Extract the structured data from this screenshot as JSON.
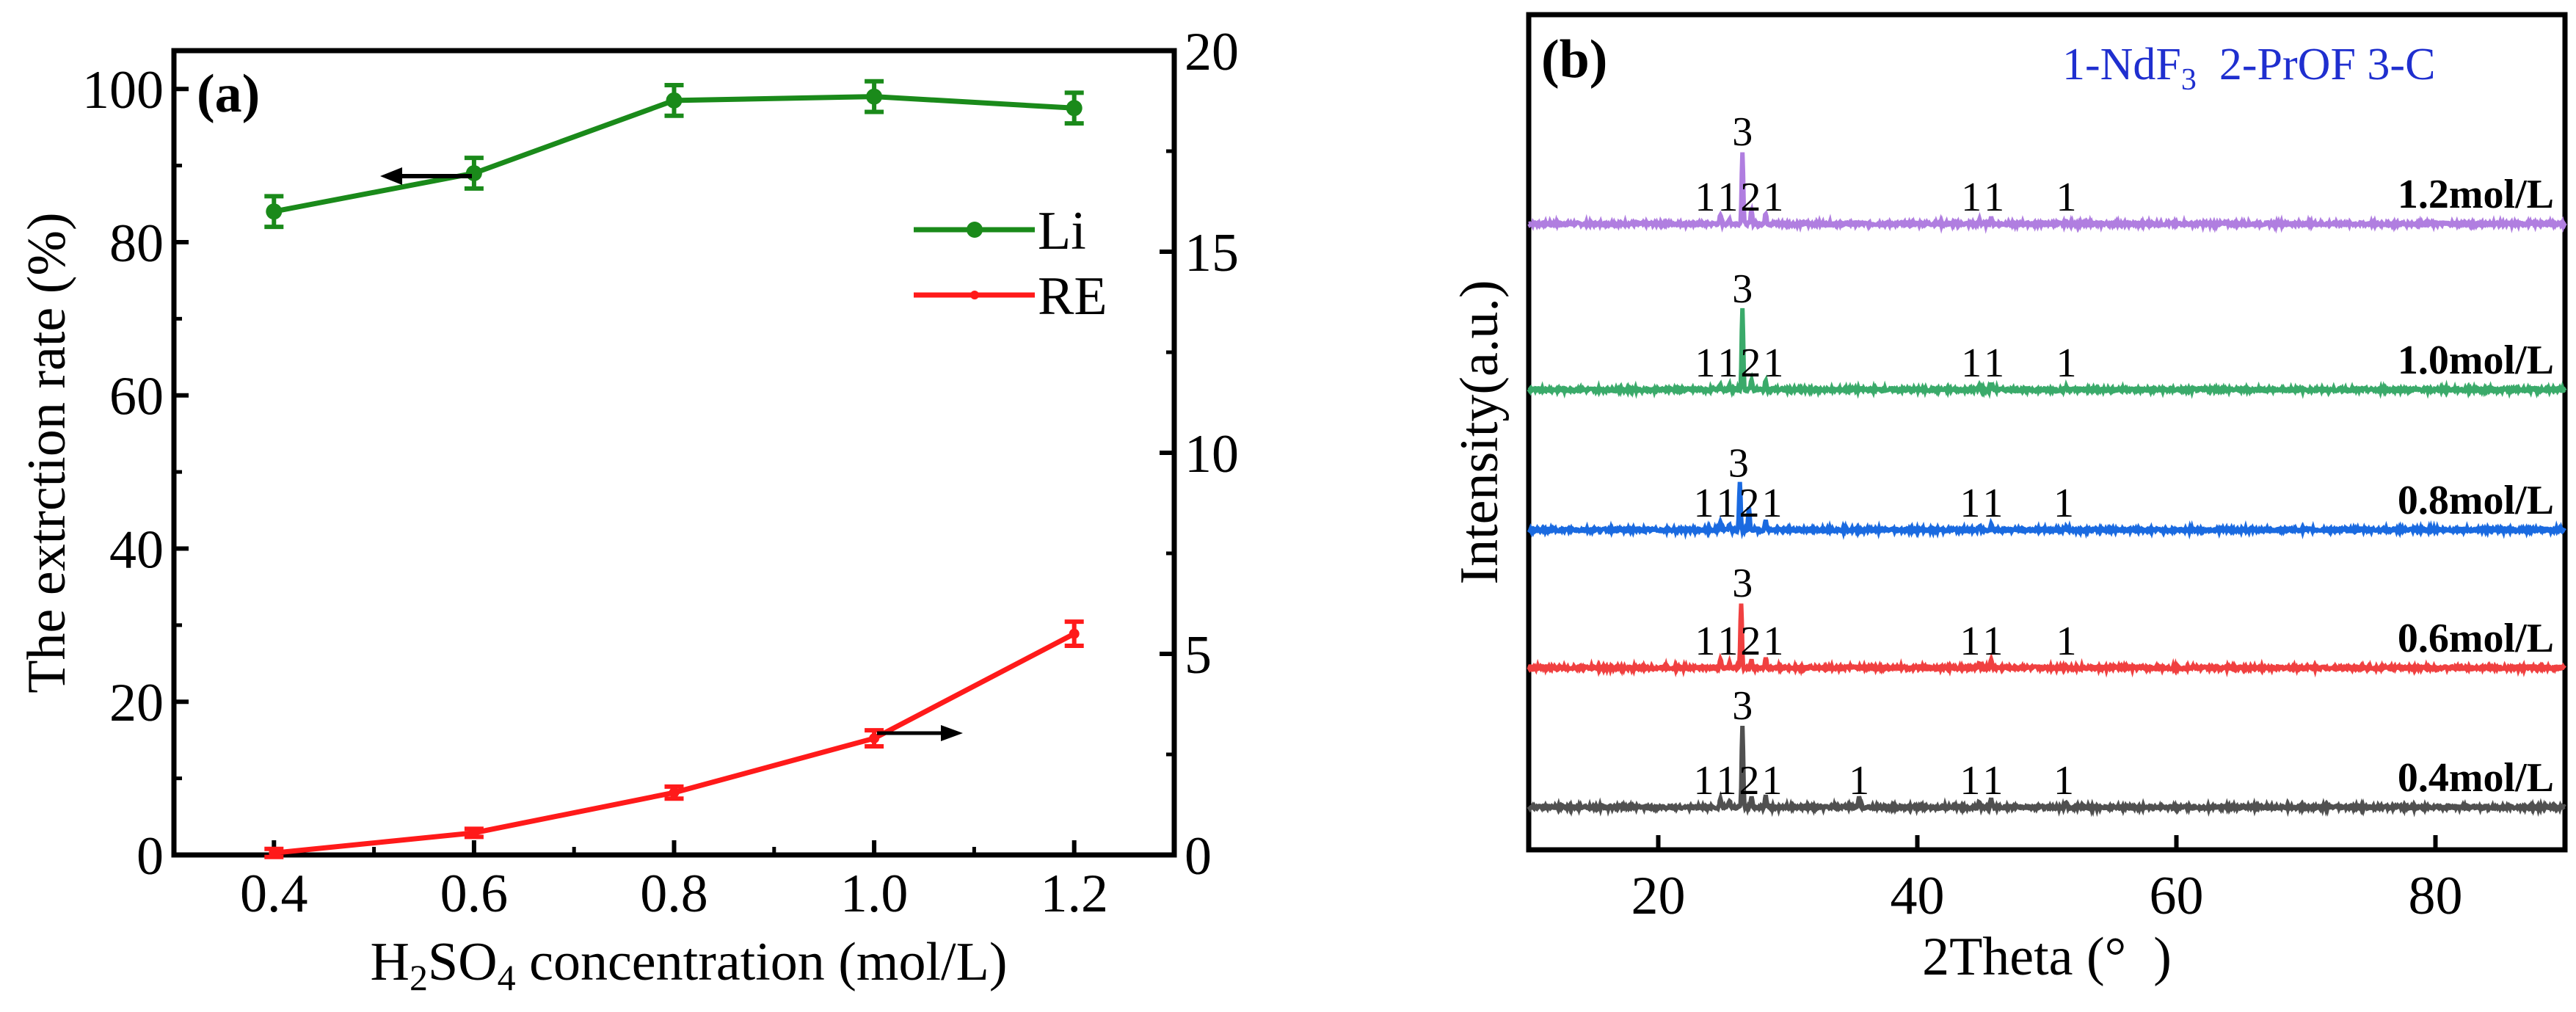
{
  "chart_data": [
    {
      "type": "line",
      "panel_label": "(a)",
      "xlabel_parts": [
        "H",
        "2",
        "SO",
        "4",
        " concentration (mol/L)"
      ],
      "ylabel": "The extrction rate (%)",
      "xlim": [
        0.3,
        1.3
      ],
      "ylim_left": [
        0,
        105
      ],
      "ylim_right": [
        0,
        20
      ],
      "x_ticks": [
        0.4,
        0.6,
        0.8,
        1.0,
        1.2
      ],
      "x_tick_labels": [
        "0.4",
        "0.6",
        "0.8",
        "1.0",
        "1.2"
      ],
      "y_left_ticks": [
        0,
        20,
        40,
        60,
        80,
        100
      ],
      "y_left_tick_labels": [
        "0",
        "20",
        "40",
        "60",
        "80",
        "100"
      ],
      "y_right_ticks": [
        0,
        5,
        10,
        15,
        20
      ],
      "y_right_tick_labels": [
        "0",
        "5",
        "10",
        "15",
        "20"
      ],
      "x": [
        0.4,
        0.6,
        0.8,
        1.0,
        1.2
      ],
      "series": [
        {
          "name": "Li",
          "axis": "left",
          "color": "#1a8a1a",
          "values": [
            84,
            89,
            98.5,
            99,
            97.5
          ],
          "errors": [
            2,
            2,
            2,
            2,
            2
          ]
        },
        {
          "name": "RE",
          "axis": "right",
          "color": "#ff1a1a",
          "values": [
            0.05,
            0.55,
            1.55,
            2.9,
            5.5
          ],
          "errors": [
            0.1,
            0.1,
            0.15,
            0.2,
            0.3
          ]
        }
      ],
      "legend": "right-upper",
      "grid": false
    },
    {
      "type": "line",
      "panel_label": "(b)",
      "legend_parts": [
        "1-NdF",
        "3",
        "  2-PrOF 3-C"
      ],
      "legend_color": "#1f2fcf",
      "xlabel": "2Theta (°  )",
      "ylabel": "Intensity(a.u.)",
      "xlim": [
        10,
        90
      ],
      "x_ticks": [
        20,
        40,
        60,
        80
      ],
      "x_tick_labels": [
        "20",
        "40",
        "60",
        "80"
      ],
      "grid": false,
      "series": [
        {
          "name": "1.2mol/L",
          "color": "#b07ee0",
          "offset": 4,
          "peaks": [
            [
              24.8,
              0.12
            ],
            [
              25.5,
              0.06
            ],
            [
              26.5,
              1.0
            ],
            [
              27.2,
              0.2
            ],
            [
              28.3,
              0.15
            ],
            [
              44.8,
              0.06
            ],
            [
              45.7,
              0.1
            ],
            [
              51.5,
              0.03
            ]
          ]
        },
        {
          "name": "1.0mol/L",
          "color": "#3aaa6a",
          "offset": 3,
          "peaks": [
            [
              24.8,
              0.08
            ],
            [
              25.5,
              0.05
            ],
            [
              26.5,
              1.12
            ],
            [
              27.2,
              0.15
            ],
            [
              28.3,
              0.12
            ],
            [
              44.8,
              0.06
            ],
            [
              45.7,
              0.08
            ],
            [
              51.5,
              0.03
            ]
          ]
        },
        {
          "name": "0.8mol/L",
          "color": "#1a6ae0",
          "offset": 2,
          "peaks": [
            [
              24.8,
              0.12
            ],
            [
              25.5,
              0.06
            ],
            [
              26.3,
              0.65
            ],
            [
              27.0,
              0.3
            ],
            [
              28.3,
              0.14
            ],
            [
              44.8,
              0.05
            ],
            [
              45.7,
              0.08
            ],
            [
              51.5,
              0.03
            ]
          ]
        },
        {
          "name": "0.6mol/L",
          "color": "#f04040",
          "offset": 1,
          "peaks": [
            [
              24.8,
              0.12
            ],
            [
              25.5,
              0.06
            ],
            [
              26.4,
              0.9
            ],
            [
              27.2,
              0.1
            ],
            [
              28.3,
              0.14
            ],
            [
              44.8,
              0.06
            ],
            [
              45.7,
              0.1
            ],
            [
              51.5,
              0.03
            ]
          ]
        },
        {
          "name": "0.4mol/L",
          "color": "#505050",
          "offset": 0,
          "peaks": [
            [
              24.8,
              0.12
            ],
            [
              25.5,
              0.1
            ],
            [
              26.5,
              1.13
            ],
            [
              27.2,
              0.15
            ],
            [
              28.3,
              0.15
            ],
            [
              35.5,
              0.15
            ],
            [
              44.8,
              0.08
            ],
            [
              45.7,
              0.12
            ],
            [
              51.5,
              0.06
            ]
          ]
        }
      ],
      "annotations": [
        {
          "series": "1.2mol/L",
          "labels": [
            [
              "3",
              26.5
            ],
            [
              "1",
              24.6
            ],
            [
              "1",
              25.3
            ],
            [
              "2",
              27.0
            ],
            [
              "1",
              28.1
            ],
            [
              "1",
              44.6
            ],
            [
              "1",
              45.5
            ],
            [
              "1",
              51.5
            ]
          ]
        },
        {
          "series": "1.0mol/L",
          "labels": [
            [
              "3",
              26.5
            ],
            [
              "1",
              24.6
            ],
            [
              "1",
              25.3
            ],
            [
              "2",
              27.0
            ],
            [
              "1",
              28.1
            ],
            [
              "1",
              44.6
            ],
            [
              "1",
              45.5
            ],
            [
              "1",
              51.5
            ]
          ]
        },
        {
          "series": "0.8mol/L",
          "labels": [
            [
              "3",
              26.2
            ],
            [
              "1",
              24.5
            ],
            [
              "1",
              25.2
            ],
            [
              "2",
              26.9
            ],
            [
              "1",
              28.0
            ],
            [
              "1",
              44.5
            ],
            [
              "1",
              45.4
            ],
            [
              "1",
              51.3
            ]
          ]
        },
        {
          "series": "0.6mol/L",
          "labels": [
            [
              "3",
              26.5
            ],
            [
              "1",
              24.6
            ],
            [
              "1",
              25.3
            ],
            [
              "2",
              27.0
            ],
            [
              "1",
              28.1
            ],
            [
              "1",
              44.5
            ],
            [
              "1",
              45.4
            ],
            [
              "1",
              51.5
            ]
          ]
        },
        {
          "series": "0.4mol/L",
          "labels": [
            [
              "3",
              26.5
            ],
            [
              "1",
              24.5
            ],
            [
              "1",
              25.2
            ],
            [
              "2",
              26.9
            ],
            [
              "1",
              28.0
            ],
            [
              "1",
              35.5
            ],
            [
              "1",
              44.5
            ],
            [
              "1",
              45.4
            ],
            [
              "1",
              51.3
            ]
          ]
        }
      ]
    }
  ]
}
